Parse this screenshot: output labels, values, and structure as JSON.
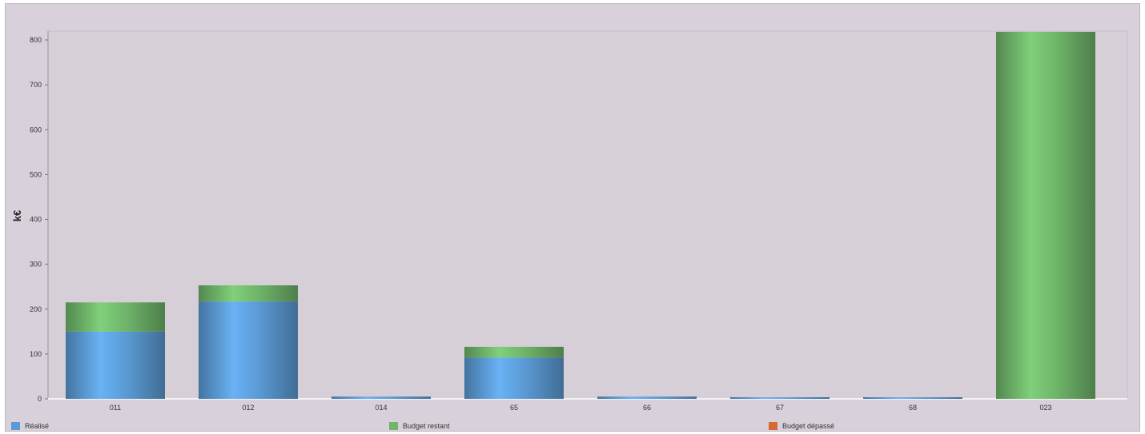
{
  "chart_data": {
    "type": "bar",
    "stacked": true,
    "categories": [
      "011",
      "012",
      "014",
      "65",
      "66",
      "67",
      "68",
      "023"
    ],
    "series": [
      {
        "name": "Réalisé",
        "color": "#5b9bd5",
        "values": [
          150,
          217,
          5,
          92,
          5,
          1,
          1,
          0
        ]
      },
      {
        "name": "Budget restant",
        "color": "#6fb56a",
        "values": [
          65,
          36,
          0,
          24,
          0,
          0,
          0,
          818
        ]
      },
      {
        "name": "Budget dépassé",
        "color": "#d46a35",
        "values": [
          0,
          0,
          0,
          0,
          0,
          0,
          0,
          0
        ]
      }
    ],
    "ylabel": "k€",
    "yticks": [
      0,
      100,
      200,
      300,
      400,
      500,
      600,
      700,
      800
    ],
    "ylim": [
      0,
      840
    ],
    "grid": false,
    "legend_position": "bottom"
  }
}
